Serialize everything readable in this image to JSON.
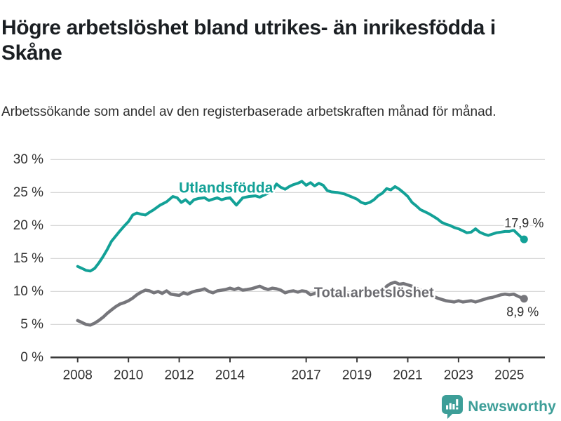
{
  "header": {
    "title": "Högre arbetslöshet bland utrikes- än inrikesfödda i Skåne",
    "subtitle": "Arbetssökande som andel av den registerbaserade arbetskraften månad för månad."
  },
  "footer": {
    "brand": "Newsworthy",
    "brand_color": "#3d9e98"
  },
  "chart_data": {
    "type": "line",
    "title": "Högre arbetslöshet bland utrikes- än inrikesfödda i Skåne",
    "subtitle": "Arbetssökande som andel av den registerbaserade arbetskraften månad för månad.",
    "grid": true,
    "legend_position": "inline-labels",
    "x_axis": {
      "range": [
        2006.93,
        2026.4
      ],
      "ticks": [
        2008,
        2010,
        2012,
        2014,
        2017,
        2019,
        2021,
        2023,
        2025
      ],
      "tick_labels": [
        "2008",
        "2010",
        "2012",
        "2014",
        "2017",
        "2019",
        "2021",
        "2023",
        "2025"
      ]
    },
    "y_axis": {
      "range": [
        0,
        30
      ],
      "ticks": [
        0,
        5,
        10,
        15,
        20,
        25,
        30
      ],
      "tick_labels": [
        "0 %",
        "5 %",
        "10 %",
        "15 %",
        "20 %",
        "25 %",
        "30 %"
      ]
    },
    "series": [
      {
        "name": "Utlandsfödda",
        "color": "#13a197",
        "label_pos": {
          "x": 2013.84,
          "y": 25.7
        },
        "end_value": 17.9,
        "end_label": "17,9 %",
        "points": [
          [
            2008.0,
            13.8
          ],
          [
            2008.17,
            13.5
          ],
          [
            2008.33,
            13.2
          ],
          [
            2008.5,
            13.1
          ],
          [
            2008.67,
            13.5
          ],
          [
            2008.83,
            14.3
          ],
          [
            2009.0,
            15.3
          ],
          [
            2009.17,
            16.4
          ],
          [
            2009.33,
            17.6
          ],
          [
            2009.5,
            18.4
          ],
          [
            2009.67,
            19.2
          ],
          [
            2009.83,
            19.9
          ],
          [
            2010.0,
            20.6
          ],
          [
            2010.17,
            21.6
          ],
          [
            2010.33,
            21.9
          ],
          [
            2010.5,
            21.7
          ],
          [
            2010.67,
            21.6
          ],
          [
            2010.83,
            22.0
          ],
          [
            2011.0,
            22.4
          ],
          [
            2011.25,
            23.1
          ],
          [
            2011.5,
            23.6
          ],
          [
            2011.75,
            24.4
          ],
          [
            2011.92,
            24.2
          ],
          [
            2012.08,
            23.5
          ],
          [
            2012.25,
            23.9
          ],
          [
            2012.42,
            23.3
          ],
          [
            2012.58,
            23.9
          ],
          [
            2012.75,
            24.1
          ],
          [
            2013.0,
            24.2
          ],
          [
            2013.17,
            23.8
          ],
          [
            2013.33,
            24.0
          ],
          [
            2013.5,
            24.2
          ],
          [
            2013.67,
            23.9
          ],
          [
            2013.83,
            24.1
          ],
          [
            2014.0,
            24.2
          ],
          [
            2014.25,
            23.1
          ],
          [
            2014.5,
            24.2
          ],
          [
            2014.75,
            24.4
          ],
          [
            2015.0,
            24.5
          ],
          [
            2015.17,
            24.3
          ],
          [
            2015.33,
            24.6
          ],
          [
            2015.5,
            24.9
          ],
          [
            2015.67,
            25.3
          ],
          [
            2015.83,
            26.3
          ],
          [
            2016.0,
            25.8
          ],
          [
            2016.17,
            25.5
          ],
          [
            2016.33,
            25.9
          ],
          [
            2016.5,
            26.2
          ],
          [
            2016.67,
            26.4
          ],
          [
            2016.83,
            26.7
          ],
          [
            2017.0,
            26.1
          ],
          [
            2017.17,
            26.5
          ],
          [
            2017.33,
            26.0
          ],
          [
            2017.5,
            26.4
          ],
          [
            2017.67,
            26.1
          ],
          [
            2017.83,
            25.3
          ],
          [
            2018.0,
            25.1
          ],
          [
            2018.25,
            25.0
          ],
          [
            2018.5,
            24.8
          ],
          [
            2018.75,
            24.4
          ],
          [
            2019.0,
            24.0
          ],
          [
            2019.17,
            23.5
          ],
          [
            2019.33,
            23.3
          ],
          [
            2019.5,
            23.5
          ],
          [
            2019.67,
            23.9
          ],
          [
            2019.83,
            24.5
          ],
          [
            2020.0,
            24.9
          ],
          [
            2020.17,
            25.6
          ],
          [
            2020.33,
            25.4
          ],
          [
            2020.5,
            25.9
          ],
          [
            2020.67,
            25.5
          ],
          [
            2020.83,
            25.0
          ],
          [
            2021.0,
            24.4
          ],
          [
            2021.17,
            23.5
          ],
          [
            2021.33,
            23.0
          ],
          [
            2021.5,
            22.4
          ],
          [
            2021.67,
            22.1
          ],
          [
            2021.83,
            21.8
          ],
          [
            2022.0,
            21.4
          ],
          [
            2022.17,
            21.0
          ],
          [
            2022.33,
            20.5
          ],
          [
            2022.5,
            20.2
          ],
          [
            2022.67,
            20.0
          ],
          [
            2022.83,
            19.7
          ],
          [
            2023.0,
            19.5
          ],
          [
            2023.17,
            19.2
          ],
          [
            2023.33,
            18.9
          ],
          [
            2023.5,
            19.0
          ],
          [
            2023.67,
            19.5
          ],
          [
            2023.83,
            19.0
          ],
          [
            2024.0,
            18.7
          ],
          [
            2024.17,
            18.5
          ],
          [
            2024.33,
            18.7
          ],
          [
            2024.5,
            18.9
          ],
          [
            2024.67,
            19.0
          ],
          [
            2024.83,
            19.1
          ],
          [
            2025.0,
            19.1
          ],
          [
            2025.17,
            19.3
          ],
          [
            2025.33,
            18.7
          ],
          [
            2025.5,
            18.1
          ],
          [
            2025.58,
            17.9
          ]
        ]
      },
      {
        "name": "Total arbetslöshet",
        "color": "#76767b",
        "label_pos": {
          "x": 2019.67,
          "y": 9.8
        },
        "end_value": 8.9,
        "end_label": "8,9 %",
        "points": [
          [
            2008.0,
            5.6
          ],
          [
            2008.17,
            5.3
          ],
          [
            2008.33,
            5.0
          ],
          [
            2008.5,
            4.9
          ],
          [
            2008.67,
            5.2
          ],
          [
            2008.83,
            5.6
          ],
          [
            2009.0,
            6.1
          ],
          [
            2009.17,
            6.7
          ],
          [
            2009.33,
            7.2
          ],
          [
            2009.5,
            7.7
          ],
          [
            2009.67,
            8.1
          ],
          [
            2009.83,
            8.3
          ],
          [
            2010.0,
            8.6
          ],
          [
            2010.17,
            9.0
          ],
          [
            2010.33,
            9.5
          ],
          [
            2010.5,
            9.9
          ],
          [
            2010.67,
            10.2
          ],
          [
            2010.83,
            10.1
          ],
          [
            2011.0,
            9.8
          ],
          [
            2011.17,
            10.0
          ],
          [
            2011.33,
            9.7
          ],
          [
            2011.5,
            10.1
          ],
          [
            2011.67,
            9.6
          ],
          [
            2011.83,
            9.5
          ],
          [
            2012.0,
            9.4
          ],
          [
            2012.17,
            9.8
          ],
          [
            2012.33,
            9.6
          ],
          [
            2012.5,
            9.9
          ],
          [
            2012.67,
            10.1
          ],
          [
            2012.83,
            10.2
          ],
          [
            2013.0,
            10.4
          ],
          [
            2013.17,
            10.0
          ],
          [
            2013.33,
            9.8
          ],
          [
            2013.5,
            10.1
          ],
          [
            2013.67,
            10.2
          ],
          [
            2013.83,
            10.3
          ],
          [
            2014.0,
            10.5
          ],
          [
            2014.17,
            10.3
          ],
          [
            2014.33,
            10.5
          ],
          [
            2014.5,
            10.2
          ],
          [
            2014.67,
            10.3
          ],
          [
            2014.83,
            10.4
          ],
          [
            2015.0,
            10.6
          ],
          [
            2015.17,
            10.8
          ],
          [
            2015.33,
            10.5
          ],
          [
            2015.5,
            10.3
          ],
          [
            2015.67,
            10.5
          ],
          [
            2015.83,
            10.4
          ],
          [
            2016.0,
            10.2
          ],
          [
            2016.17,
            9.8
          ],
          [
            2016.33,
            10.0
          ],
          [
            2016.5,
            10.1
          ],
          [
            2016.67,
            9.9
          ],
          [
            2016.83,
            10.1
          ],
          [
            2017.0,
            10.0
          ],
          [
            2017.17,
            9.5
          ],
          [
            2017.33,
            9.7
          ],
          [
            2017.5,
            9.9
          ],
          [
            2017.67,
            9.7
          ],
          [
            2017.83,
            9.8
          ],
          [
            2018.0,
            9.7
          ],
          [
            2018.17,
            9.3
          ],
          [
            2018.33,
            9.5
          ],
          [
            2018.5,
            9.6
          ],
          [
            2018.67,
            9.4
          ],
          [
            2018.83,
            9.5
          ],
          [
            2019.0,
            9.4
          ],
          [
            2019.17,
            9.2
          ],
          [
            2019.33,
            9.4
          ],
          [
            2019.5,
            9.5
          ],
          [
            2019.67,
            9.6
          ],
          [
            2019.83,
            9.7
          ],
          [
            2020.0,
            9.9
          ],
          [
            2020.17,
            10.8
          ],
          [
            2020.33,
            11.2
          ],
          [
            2020.5,
            11.4
          ],
          [
            2020.67,
            11.1
          ],
          [
            2020.83,
            11.2
          ],
          [
            2021.0,
            11.0
          ],
          [
            2021.17,
            10.8
          ],
          [
            2021.33,
            10.5
          ],
          [
            2021.5,
            10.2
          ],
          [
            2021.67,
            9.9
          ],
          [
            2021.83,
            9.6
          ],
          [
            2022.0,
            9.3
          ],
          [
            2022.17,
            9.0
          ],
          [
            2022.33,
            8.8
          ],
          [
            2022.5,
            8.6
          ],
          [
            2022.67,
            8.5
          ],
          [
            2022.83,
            8.4
          ],
          [
            2023.0,
            8.6
          ],
          [
            2023.17,
            8.4
          ],
          [
            2023.33,
            8.5
          ],
          [
            2023.5,
            8.6
          ],
          [
            2023.67,
            8.4
          ],
          [
            2023.83,
            8.6
          ],
          [
            2024.0,
            8.8
          ],
          [
            2024.17,
            9.0
          ],
          [
            2024.33,
            9.1
          ],
          [
            2024.5,
            9.3
          ],
          [
            2024.67,
            9.5
          ],
          [
            2024.83,
            9.6
          ],
          [
            2025.0,
            9.5
          ],
          [
            2025.17,
            9.6
          ],
          [
            2025.33,
            9.3
          ],
          [
            2025.5,
            9.0
          ],
          [
            2025.58,
            8.9
          ]
        ]
      }
    ],
    "colors": {
      "accent_teal": "#13a197",
      "line_gray": "#76767b",
      "grid": "#d9d9d9",
      "axis": "#3a3a3a",
      "text": "#2e2e2e"
    }
  }
}
